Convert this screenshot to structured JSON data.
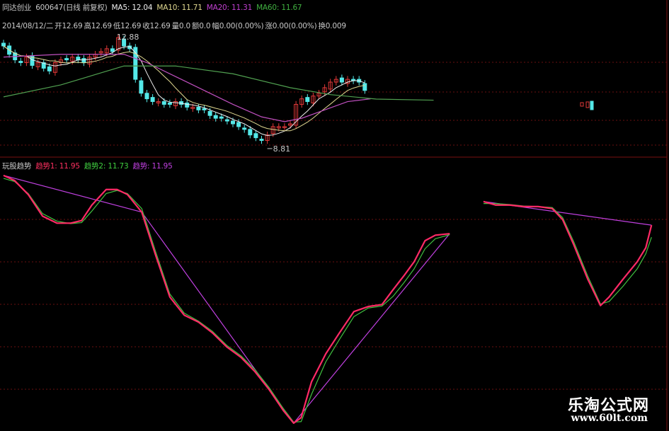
{
  "header": {
    "stock_name": "同达创业",
    "stock_code": "600647(日线 前复权)",
    "ma5": "MA5: 12.04",
    "ma10": "MA10: 11.71",
    "ma20": "MA20: 11.31",
    "ma60": "MA60: 11.67",
    "date": "2014/08/12/二",
    "open": "开12.69",
    "high": "高12.69",
    "low": "低12.69",
    "close": "收12.69",
    "volume": "量0.0",
    "amount": "额0.0",
    "amplitude": "幅0.00(0.00%)",
    "change": "涨0.00(0.00%)",
    "turnover": "换0.009"
  },
  "indicator_header": {
    "title": "玩股趋势",
    "trend1": "趋势1: 11.95",
    "trend2": "趋势2: 11.73",
    "trend3": "趋势: 11.95"
  },
  "watermark": {
    "title": "乐淘公式网",
    "url": "www.60lt.com"
  },
  "colors": {
    "up": "#e03838",
    "down": "#54e8e8",
    "ma5": "#f0f0f0",
    "ma10": "#e0d890",
    "ma20": "#c050c0",
    "ma60": "#50a050",
    "trend1": "#ff2a66",
    "trend2": "#40c040",
    "trend3": "#c040e0",
    "grid": "#6a1010"
  },
  "chart_data": [
    {
      "type": "candlestick",
      "closes": [
        12.5,
        12.2,
        12.0,
        11.9,
        12.1,
        11.8,
        11.9,
        11.7,
        11.6,
        11.9,
        12.0,
        12.0,
        12.1,
        12.0,
        11.9,
        12.1,
        12.2,
        12.3,
        12.4,
        12.3,
        12.8,
        12.5,
        12.4,
        11.3,
        10.8,
        10.6,
        10.5,
        10.5,
        10.4,
        10.4,
        10.5,
        10.4,
        10.3,
        10.3,
        10.2,
        10.2,
        10.0,
        9.9,
        9.9,
        9.8,
        9.7,
        9.6,
        9.5,
        9.3,
        9.2,
        9.1,
        9.3,
        9.6,
        9.6,
        9.6,
        9.7,
        10.4,
        10.6,
        10.5,
        10.7,
        10.8,
        11.0,
        11.2,
        11.3,
        11.2,
        11.3,
        11.25,
        11.2,
        10.9
      ],
      "ylim": [
        8.6,
        13.2
      ],
      "annotations": [
        {
          "text": "12.88",
          "bar": 19,
          "value": 12.88
        },
        {
          "text": "8.81",
          "bar": 46,
          "value": 8.81
        }
      ],
      "series": [
        {
          "name": "MA20",
          "points": [
            [
              0,
              12.1
            ],
            [
              10,
              12.2
            ],
            [
              21,
              12.2
            ],
            [
              25,
              11.9
            ],
            [
              30,
              11.4
            ],
            [
              35,
              10.9
            ],
            [
              40,
              10.4
            ],
            [
              45,
              9.95
            ],
            [
              49,
              9.78
            ],
            [
              52,
              9.9
            ],
            [
              56,
              10.2
            ],
            [
              60,
              10.5
            ],
            [
              64,
              10.6
            ]
          ]
        },
        {
          "name": "MA60",
          "points": [
            [
              0,
              10.67
            ],
            [
              10,
              11.1
            ],
            [
              21,
              11.78
            ],
            [
              30,
              11.78
            ],
            [
              40,
              11.5
            ],
            [
              50,
              11.0
            ],
            [
              57,
              10.75
            ],
            [
              65,
              10.59
            ],
            [
              75,
              10.55
            ]
          ]
        }
      ],
      "grid": true
    },
    {
      "type": "line",
      "title": "玩股趋势",
      "ylim": [
        8,
        13
      ],
      "grid": true,
      "series": [
        {
          "name": "趋势1",
          "segments": [
            [
              [
                0,
                12.96
              ],
              [
                1.9,
                12.86
              ],
              [
                4.3,
                12.58
              ],
              [
                6.8,
                12.15
              ],
              [
                9.3,
                12.01
              ],
              [
                11.7,
                12.01
              ],
              [
                13.6,
                12.06
              ],
              [
                15.4,
                12.37
              ],
              [
                17.9,
                12.68
              ],
              [
                19.8,
                12.68
              ],
              [
                21.6,
                12.58
              ],
              [
                24.1,
                12.23
              ],
              [
                26.5,
                11.38
              ],
              [
                29,
                10.54
              ],
              [
                31.5,
                10.18
              ],
              [
                34,
                10.04
              ],
              [
                36.4,
                9.83
              ],
              [
                38.9,
                9.55
              ],
              [
                41.4,
                9.34
              ],
              [
                43.8,
                9.06
              ],
              [
                46.3,
                8.7
              ],
              [
                48.8,
                8.28
              ],
              [
                50.6,
                8.03
              ],
              [
                51.9,
                8.14
              ],
              [
                53.7,
                8.85
              ],
              [
                56.2,
                9.41
              ],
              [
                58.6,
                9.83
              ],
              [
                61.1,
                10.25
              ],
              [
                63.6,
                10.35
              ],
              [
                66,
                10.39
              ],
              [
                67.9,
                10.68
              ],
              [
                69.8,
                10.96
              ],
              [
                71.6,
                11.24
              ],
              [
                73.5,
                11.66
              ],
              [
                75.3,
                11.77
              ],
              [
                77.8,
                11.8
              ]
            ],
            [
              [
                83.7,
                12.44
              ],
              [
                85.8,
                12.37
              ],
              [
                88.3,
                12.37
              ],
              [
                90.7,
                12.34
              ],
              [
                93.2,
                12.34
              ],
              [
                95.7,
                12.3
              ],
              [
                97.5,
                12.08
              ],
              [
                99.4,
                11.59
              ],
              [
                101.9,
                10.89
              ],
              [
                104.1,
                10.37
              ],
              [
                105.6,
                10.54
              ],
              [
                108,
                10.89
              ],
              [
                110.5,
                11.24
              ],
              [
                112,
                11.52
              ],
              [
                113,
                11.97
              ]
            ]
          ]
        },
        {
          "name": "趋势2",
          "segments": [
            [
              [
                0,
                12.9
              ],
              [
                1.9,
                12.84
              ],
              [
                4.3,
                12.6
              ],
              [
                6.8,
                12.2
              ],
              [
                9.3,
                12.05
              ],
              [
                11.7,
                12.0
              ],
              [
                13.6,
                12.02
              ],
              [
                15.4,
                12.25
              ],
              [
                17.9,
                12.6
              ],
              [
                19.8,
                12.66
              ],
              [
                21.6,
                12.6
              ],
              [
                24.1,
                12.3
              ],
              [
                26.5,
                11.45
              ],
              [
                29,
                10.6
              ],
              [
                31.5,
                10.22
              ],
              [
                34,
                10.06
              ],
              [
                36.4,
                9.86
              ],
              [
                38.9,
                9.58
              ],
              [
                41.4,
                9.37
              ],
              [
                43.8,
                9.1
              ],
              [
                46.3,
                8.74
              ],
              [
                48.8,
                8.32
              ],
              [
                50.6,
                8.05
              ],
              [
                51.9,
                8.06
              ],
              [
                53.7,
                8.6
              ],
              [
                56.2,
                9.25
              ],
              [
                58.6,
                9.7
              ],
              [
                61.1,
                10.15
              ],
              [
                63.6,
                10.32
              ],
              [
                66,
                10.36
              ],
              [
                67.9,
                10.55
              ],
              [
                69.8,
                10.82
              ],
              [
                71.6,
                11.1
              ],
              [
                73.5,
                11.5
              ],
              [
                75.3,
                11.7
              ],
              [
                77.8,
                11.78
              ]
            ],
            [
              [
                83.7,
                12.4
              ],
              [
                85.8,
                12.4
              ],
              [
                88.3,
                12.38
              ],
              [
                90.7,
                12.35
              ],
              [
                93.2,
                12.34
              ],
              [
                95.7,
                12.32
              ],
              [
                97.5,
                12.12
              ],
              [
                99.4,
                11.65
              ],
              [
                101.9,
                10.95
              ],
              [
                104.1,
                10.4
              ],
              [
                105.6,
                10.45
              ],
              [
                108,
                10.75
              ],
              [
                110.5,
                11.1
              ],
              [
                112,
                11.4
              ],
              [
                113,
                11.73
              ]
            ]
          ]
        },
        {
          "name": "趋势",
          "segments": [
            [
              [
                0,
                12.96
              ],
              [
                24.1,
                12.23
              ],
              [
                50.6,
                8.03
              ],
              [
                77.8,
                11.8
              ]
            ],
            [
              [
                83.7,
                12.44
              ],
              [
                113,
                11.97
              ]
            ]
          ]
        }
      ]
    }
  ]
}
